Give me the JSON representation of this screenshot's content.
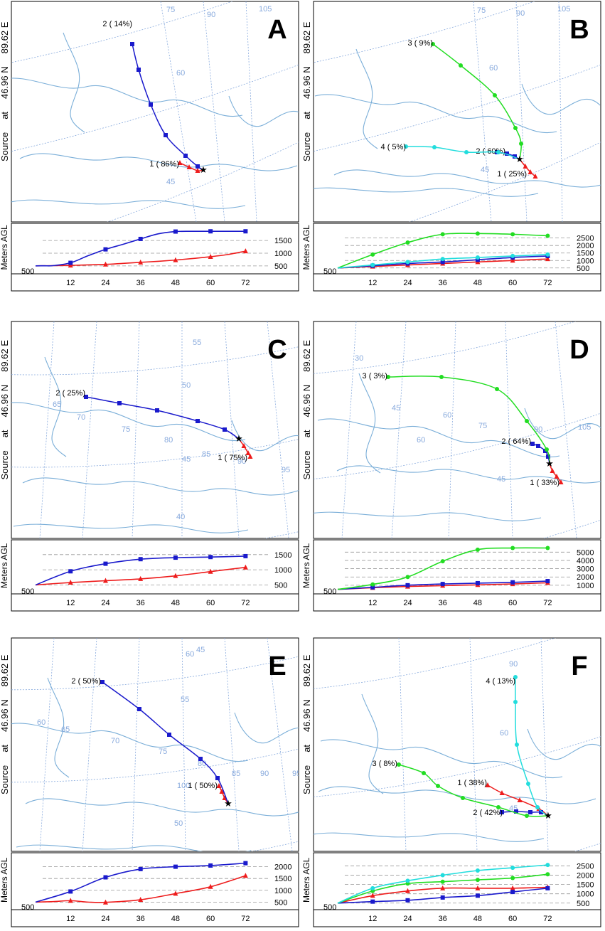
{
  "source_label": "Source",
  "at_label": "at",
  "lat_label": "46.96 N",
  "lon_label": "89.62 E",
  "y_axis_label": "Meters AGL",
  "start_height": "500",
  "colors": {
    "red": "#ee1c1c",
    "blue": "#1a1acc",
    "green": "#22dd22",
    "cyan": "#22dddd",
    "map": "#7aaed8",
    "grid": "#88aadd"
  },
  "chart_data": [
    {
      "panel": "A",
      "type": "line",
      "x_ticks": [
        "12",
        "24",
        "36",
        "48",
        "60",
        "72"
      ],
      "x_range": [
        0,
        78
      ],
      "y_ticks": [
        "500",
        "1000",
        "1500"
      ],
      "y_range": [
        300,
        1950
      ],
      "map_labels": [
        "75",
        "90",
        "105",
        "60",
        "45"
      ],
      "series": [
        {
          "name": "1 ( 86%)",
          "color": "red",
          "marker": "tri",
          "x": [
            0,
            3,
            6,
            12,
            18,
            24,
            30,
            36,
            42,
            48,
            54,
            60,
            66,
            72
          ],
          "y": [
            500,
            505,
            510,
            520,
            540,
            560,
            600,
            640,
            680,
            730,
            790,
            860,
            950,
            1080
          ]
        },
        {
          "name": "2 ( 14%)",
          "color": "blue",
          "marker": "sq",
          "x": [
            0,
            3,
            6,
            12,
            18,
            24,
            30,
            36,
            42,
            48,
            54,
            60,
            66,
            72
          ],
          "y": [
            500,
            505,
            510,
            620,
            900,
            1150,
            1350,
            1560,
            1760,
            1850,
            1860,
            1860,
            1860,
            1860
          ]
        }
      ]
    },
    {
      "panel": "B",
      "type": "line",
      "x_ticks": [
        "12",
        "24",
        "36",
        "48",
        "60",
        "72"
      ],
      "x_range": [
        0,
        78
      ],
      "y_ticks": [
        "500",
        "1000",
        "1500",
        "2000",
        "2500"
      ],
      "y_range": [
        300,
        3100
      ],
      "map_labels": [
        "75",
        "90",
        "105",
        "60",
        "45"
      ],
      "series": [
        {
          "name": "1 ( 25%)",
          "color": "red",
          "marker": "tri",
          "x": [
            0,
            12,
            24,
            36,
            48,
            60,
            72
          ],
          "y": [
            500,
            600,
            700,
            800,
            900,
            1000,
            1100
          ]
        },
        {
          "name": "2 ( 60%)",
          "color": "blue",
          "marker": "sq",
          "x": [
            0,
            12,
            24,
            36,
            48,
            60,
            72
          ],
          "y": [
            500,
            650,
            800,
            900,
            1050,
            1200,
            1300
          ]
        },
        {
          "name": "3 (  9%)",
          "color": "green",
          "marker": "ci",
          "x": [
            0,
            12,
            24,
            36,
            48,
            60,
            72
          ],
          "y": [
            500,
            1400,
            2200,
            2750,
            2800,
            2750,
            2650
          ]
        },
        {
          "name": "4 (  5%)",
          "color": "cyan",
          "marker": "ci",
          "x": [
            0,
            12,
            24,
            36,
            48,
            60,
            72
          ],
          "y": [
            500,
            700,
            900,
            1100,
            1200,
            1300,
            1400
          ]
        }
      ]
    },
    {
      "panel": "C",
      "type": "line",
      "x_ticks": [
        "12",
        "24",
        "36",
        "48",
        "60",
        "72"
      ],
      "x_range": [
        0,
        78
      ],
      "y_ticks": [
        "500",
        "1000",
        "1500"
      ],
      "y_range": [
        300,
        1800
      ],
      "map_labels": [
        "55",
        "50",
        "65",
        "70",
        "75",
        "80",
        "85",
        "90",
        "95",
        "45",
        "40"
      ],
      "series": [
        {
          "name": "1 ( 75%)",
          "color": "red",
          "marker": "tri",
          "x": [
            0,
            12,
            24,
            36,
            48,
            60,
            72
          ],
          "y": [
            500,
            580,
            640,
            700,
            800,
            940,
            1080
          ]
        },
        {
          "name": "2 ( 25%)",
          "color": "blue",
          "marker": "sq",
          "x": [
            0,
            12,
            24,
            36,
            48,
            60,
            72
          ],
          "y": [
            500,
            950,
            1200,
            1350,
            1400,
            1420,
            1450
          ]
        }
      ]
    },
    {
      "panel": "D",
      "type": "line",
      "x_ticks": [
        "12",
        "24",
        "36",
        "48",
        "60",
        "72"
      ],
      "x_range": [
        0,
        78
      ],
      "y_ticks": [
        "1000",
        "2000",
        "3000",
        "4000",
        "5000"
      ],
      "y_range": [
        300,
        5800
      ],
      "map_labels": [
        "30",
        "45",
        "60",
        "60",
        "75",
        "90",
        "105",
        "45"
      ],
      "series": [
        {
          "name": "1 ( 33%)",
          "color": "red",
          "marker": "tri",
          "x": [
            0,
            12,
            24,
            36,
            48,
            60,
            72
          ],
          "y": [
            500,
            700,
            850,
            950,
            1050,
            1150,
            1300
          ]
        },
        {
          "name": "2 ( 64%)",
          "color": "blue",
          "marker": "sq",
          "x": [
            0,
            12,
            24,
            36,
            48,
            60,
            72
          ],
          "y": [
            500,
            750,
            1000,
            1150,
            1250,
            1350,
            1500
          ]
        },
        {
          "name": "3 (  3%)",
          "color": "green",
          "marker": "ci",
          "x": [
            0,
            12,
            24,
            36,
            48,
            60,
            72
          ],
          "y": [
            500,
            1100,
            2000,
            3900,
            5300,
            5500,
            5500
          ]
        }
      ]
    },
    {
      "panel": "E",
      "type": "line",
      "x_ticks": [
        "12",
        "24",
        "36",
        "48",
        "60",
        "72"
      ],
      "x_range": [
        0,
        78
      ],
      "y_ticks": [
        "500",
        "1000",
        "1500",
        "2000"
      ],
      "y_range": [
        300,
        2350
      ],
      "map_labels": [
        "60",
        "55",
        "60",
        "65",
        "70",
        "75",
        "80",
        "85",
        "90",
        "95",
        "100",
        "50",
        "45"
      ],
      "series": [
        {
          "name": "1 ( 50%)",
          "color": "red",
          "marker": "tri",
          "x": [
            0,
            6,
            12,
            18,
            24,
            36,
            48,
            60,
            72
          ],
          "y": [
            500,
            520,
            560,
            500,
            490,
            600,
            860,
            1150,
            1620
          ]
        },
        {
          "name": "2 ( 50%)",
          "color": "blue",
          "marker": "sq",
          "x": [
            0,
            12,
            24,
            36,
            48,
            60,
            72
          ],
          "y": [
            500,
            950,
            1550,
            1900,
            2000,
            2050,
            2150
          ]
        }
      ]
    },
    {
      "panel": "F",
      "type": "line",
      "x_ticks": [
        "12",
        "24",
        "36",
        "48",
        "60",
        "72"
      ],
      "x_range": [
        0,
        78
      ],
      "y_ticks": [
        "500",
        "1000",
        "1500",
        "2000",
        "2500"
      ],
      "y_range": [
        300,
        2900
      ],
      "map_labels": [
        "90",
        "60",
        "45"
      ],
      "series": [
        {
          "name": "1 ( 38%)",
          "color": "red",
          "marker": "tri",
          "x": [
            0,
            12,
            24,
            36,
            48,
            60,
            72
          ],
          "y": [
            500,
            900,
            1150,
            1300,
            1300,
            1300,
            1350
          ]
        },
        {
          "name": "2 ( 42%)",
          "color": "blue",
          "marker": "sq",
          "x": [
            0,
            12,
            24,
            36,
            48,
            60,
            72
          ],
          "y": [
            500,
            580,
            650,
            800,
            900,
            1100,
            1300
          ]
        },
        {
          "name": "3 (  8%)",
          "color": "green",
          "marker": "ci",
          "x": [
            0,
            12,
            24,
            36,
            48,
            60,
            72
          ],
          "y": [
            500,
            1150,
            1550,
            1650,
            1750,
            1850,
            2050
          ]
        },
        {
          "name": "4 ( 13%)",
          "color": "cyan",
          "marker": "ci",
          "x": [
            0,
            12,
            24,
            36,
            48,
            60,
            72
          ],
          "y": [
            500,
            1300,
            1700,
            2000,
            2250,
            2400,
            2550
          ]
        }
      ]
    }
  ]
}
